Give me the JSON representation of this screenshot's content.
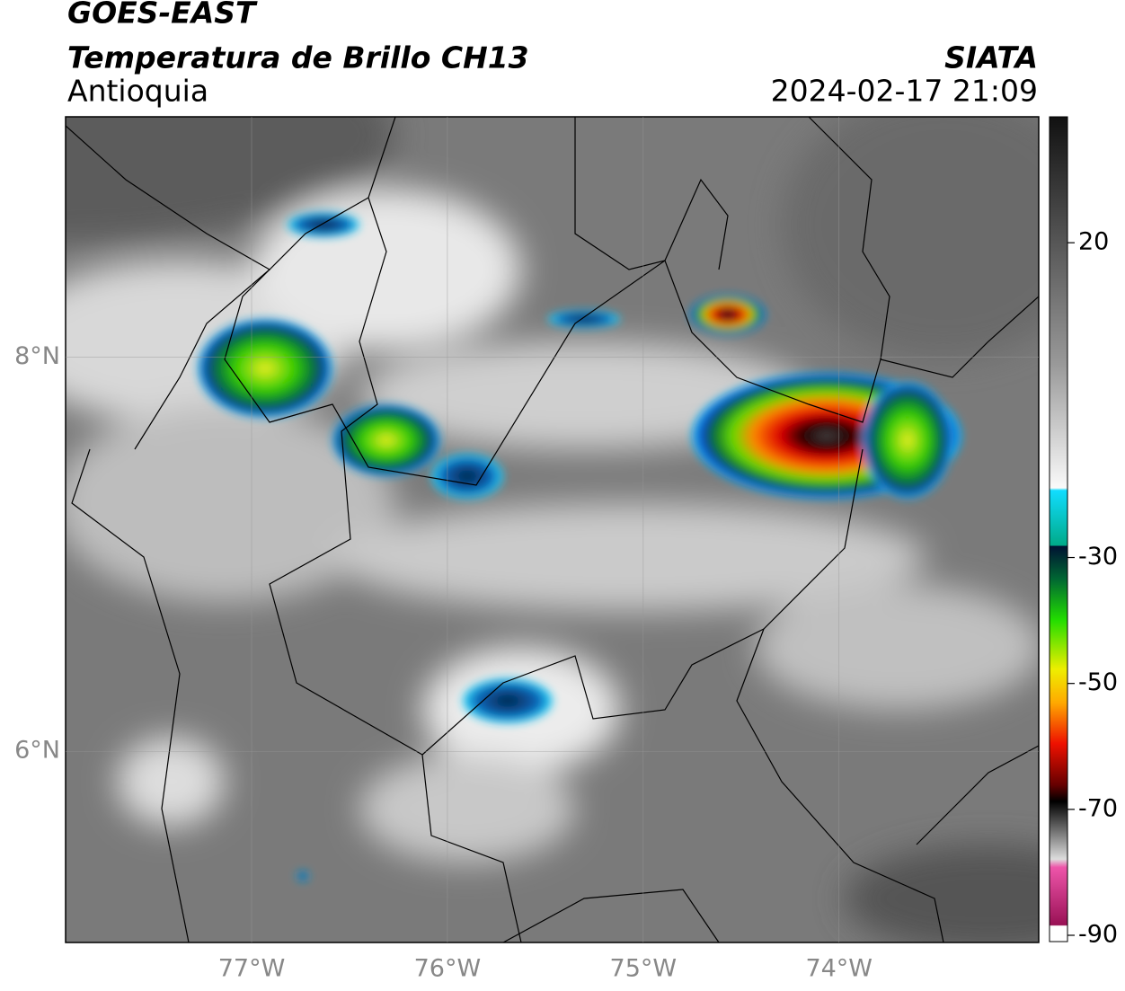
{
  "header": {
    "satellite": "GOES-EAST",
    "product": "Temperatura de Brillo CH13",
    "region": "Antioquia",
    "agency": "SIATA",
    "datetime": "2024-02-17 21:09"
  },
  "map": {
    "xlim": [
      -77.95,
      -72.98
    ],
    "ylim": [
      5.03,
      9.22
    ],
    "xticks": [
      {
        "value": -77,
        "label": "77°W"
      },
      {
        "value": -76,
        "label": "76°W"
      },
      {
        "value": -75,
        "label": "75°W"
      },
      {
        "value": -74,
        "label": "74°W"
      }
    ],
    "yticks": [
      {
        "value": 8,
        "label": "8°N"
      },
      {
        "value": 6,
        "label": "6°N"
      }
    ]
  },
  "colorbar": {
    "lim": [
      -91,
      40
    ],
    "ticks": [
      20,
      -30,
      -50,
      -70,
      -90
    ]
  }
}
